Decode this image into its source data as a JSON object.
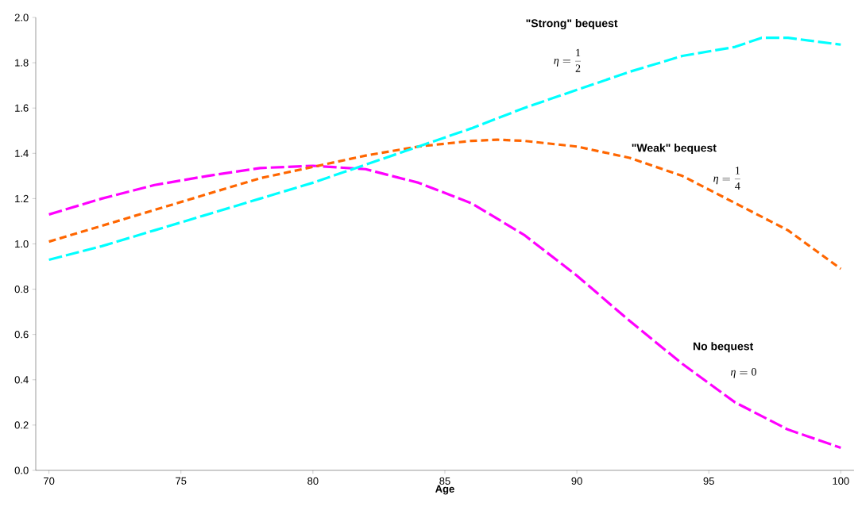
{
  "chart_data": {
    "type": "line",
    "xlabel": "Age",
    "xlim": [
      69.5,
      100.5
    ],
    "xticks": [
      70,
      75,
      80,
      85,
      90,
      95,
      100
    ],
    "ylim": [
      0,
      2
    ],
    "yticks": [
      {
        "value": 0,
        "label": "0.0"
      },
      {
        "value": 0.2,
        "label": "0.2"
      },
      {
        "value": 0.4,
        "label": "0.4"
      },
      {
        "value": 0.6,
        "label": "0.6"
      },
      {
        "value": 0.8,
        "label": "0.8"
      },
      {
        "value": 1,
        "label": "1.0"
      },
      {
        "value": 1.2,
        "label": "1.2"
      },
      {
        "value": 1.4,
        "label": "1.4"
      },
      {
        "value": 1.6,
        "label": "1.6"
      },
      {
        "value": 1.8,
        "label": "1.8"
      },
      {
        "value": 2,
        "label": "2.0"
      }
    ],
    "grid": false,
    "marker": "none",
    "line_style": "dashed",
    "series": [
      {
        "color": "#ff00ff",
        "x": [
          70,
          72,
          74,
          76,
          78,
          80,
          82,
          84,
          86,
          88,
          90,
          92,
          94,
          96,
          98,
          100
        ],
        "values": [
          1.13,
          1.2,
          1.26,
          1.3,
          1.335,
          1.345,
          1.33,
          1.27,
          1.18,
          1.04,
          0.86,
          0.66,
          0.47,
          0.3,
          0.18,
          0.1
        ]
      },
      {
        "color": "#ff6600",
        "x": [
          70,
          72,
          74,
          76,
          78,
          80,
          82,
          84,
          86,
          87,
          88,
          90,
          92,
          94,
          96,
          98,
          100
        ],
        "values": [
          1.01,
          1.08,
          1.15,
          1.22,
          1.29,
          1.34,
          1.39,
          1.43,
          1.455,
          1.46,
          1.455,
          1.43,
          1.38,
          1.3,
          1.18,
          1.06,
          0.89
        ]
      },
      {
        "color": "#00ffff",
        "x": [
          70,
          72,
          74,
          76,
          78,
          80,
          82,
          84,
          86,
          88,
          90,
          92,
          94,
          96,
          97,
          98,
          100
        ],
        "values": [
          0.93,
          0.99,
          1.06,
          1.13,
          1.2,
          1.27,
          1.35,
          1.43,
          1.51,
          1.6,
          1.68,
          1.76,
          1.83,
          1.87,
          1.91,
          1.91,
          1.88
        ]
      }
    ],
    "annotations": [
      "\"Strong\" bequest",
      "\\eta=\\frac{1}{2}",
      "\"Weak\" bequest",
      "\\eta=\\frac{1}{4}",
      "No bequest",
      "\\eta=0"
    ]
  }
}
